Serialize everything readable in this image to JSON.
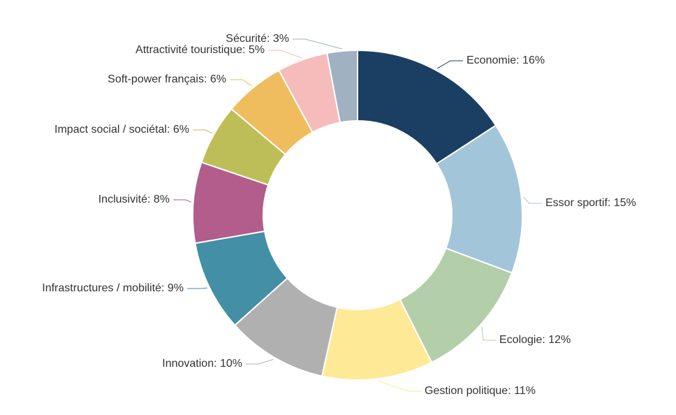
{
  "chart_data": {
    "type": "pie",
    "variant": "donut",
    "title": "",
    "legend": "none",
    "unit": "%",
    "categories": [
      "Economie",
      "Essor sportif",
      "Ecologie",
      "Gestion politique",
      "Innovation",
      "Infrastructures / mobilité",
      "Inclusivité",
      "Impact social / sociétal",
      "Soft-power français",
      "Attractivité touristique",
      "Sécurité"
    ],
    "values": [
      16,
      15,
      12,
      11,
      10,
      9,
      8,
      6,
      6,
      5,
      3
    ],
    "labels": [
      "Economie: 16%",
      "Essor sportif: 15%",
      "Ecologie: 12%",
      "Gestion politique: 11%",
      "Innovation: 10%",
      "Infrastructures / mobilité: 9%",
      "Inclusivité: 8%",
      "Impact social / sociétal: 6%",
      "Soft-power français: 6%",
      "Attractivité touristique: 5%",
      "Sécurité: 3%"
    ],
    "colors": [
      "#1b3f62",
      "#a3c5d9",
      "#b3cfaa",
      "#feea96",
      "#b0b0b0",
      "#428fa6",
      "#b25d8b",
      "#bdbe57",
      "#efbd5d",
      "#f6bbbb",
      "#a0b1c2"
    ]
  }
}
